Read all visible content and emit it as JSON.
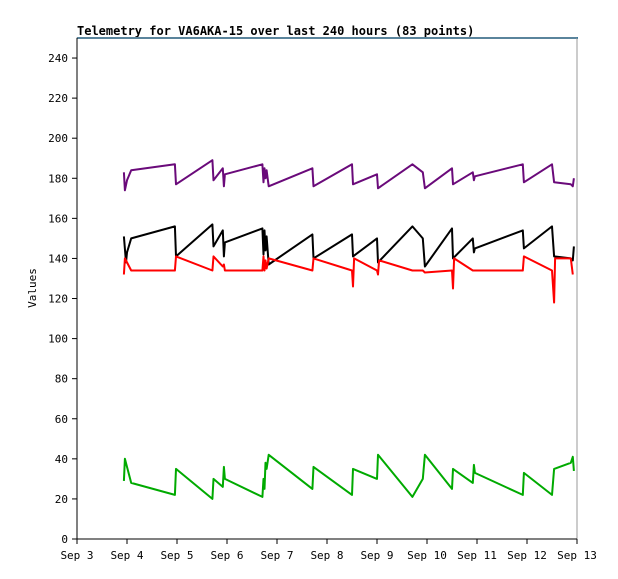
{
  "chart_data": {
    "type": "line",
    "title": "Telemetry for VA6AKA-15 over last 240 hours (83 points)",
    "xlabel": "",
    "ylabel": "Values",
    "xlim": [
      0,
      240
    ],
    "ylim": [
      0,
      250
    ],
    "x_ticks": [
      {
        "x": 0,
        "label": "Sep 3"
      },
      {
        "x": 24,
        "label": "Sep 4"
      },
      {
        "x": 48,
        "label": "Sep 5"
      },
      {
        "x": 72,
        "label": "Sep 6"
      },
      {
        "x": 96,
        "label": "Sep 7"
      },
      {
        "x": 120,
        "label": "Sep 8"
      },
      {
        "x": 144,
        "label": "Sep 9"
      },
      {
        "x": 168,
        "label": "Sep 10"
      },
      {
        "x": 192,
        "label": "Sep 11"
      },
      {
        "x": 216,
        "label": "Sep 12"
      },
      {
        "x": 240,
        "label": "Sep 13"
      }
    ],
    "y_ticks": [
      0,
      20,
      40,
      60,
      80,
      100,
      120,
      140,
      160,
      180,
      200,
      220,
      240
    ],
    "grid": false,
    "legend": "none",
    "series": [
      {
        "color": "#6a0a7a",
        "points": [
          [
            22.5,
            183
          ],
          [
            23,
            174
          ],
          [
            24,
            179
          ],
          [
            26,
            184
          ],
          [
            47,
            187
          ],
          [
            47.5,
            177
          ],
          [
            65,
            189
          ],
          [
            65.5,
            179
          ],
          [
            70,
            185
          ],
          [
            70.5,
            176
          ],
          [
            71,
            182
          ],
          [
            89,
            187
          ],
          [
            89.5,
            178
          ],
          [
            90,
            185
          ],
          [
            90.5,
            180
          ],
          [
            91,
            184
          ],
          [
            92,
            176
          ],
          [
            113,
            185
          ],
          [
            113.5,
            176
          ],
          [
            132,
            187
          ],
          [
            132.5,
            177
          ],
          [
            144,
            182
          ],
          [
            144.5,
            175
          ],
          [
            161,
            187
          ],
          [
            166,
            183
          ],
          [
            167,
            175
          ],
          [
            180,
            185
          ],
          [
            180.5,
            177
          ],
          [
            190,
            183
          ],
          [
            190.5,
            179
          ],
          [
            191,
            181
          ],
          [
            214,
            187
          ],
          [
            214.5,
            178
          ],
          [
            228,
            187
          ],
          [
            229,
            178
          ],
          [
            237,
            177
          ],
          [
            238,
            176
          ],
          [
            238.5,
            180
          ]
        ]
      },
      {
        "color": "#000000",
        "points": [
          [
            22.5,
            151
          ],
          [
            23.5,
            138
          ],
          [
            24,
            143
          ],
          [
            26,
            150
          ],
          [
            47,
            156
          ],
          [
            47.5,
            141
          ],
          [
            65,
            157
          ],
          [
            65.5,
            146
          ],
          [
            70,
            154
          ],
          [
            70.5,
            141
          ],
          [
            71,
            148
          ],
          [
            89,
            155
          ],
          [
            89.5,
            142
          ],
          [
            90,
            154
          ],
          [
            90.5,
            144
          ],
          [
            91,
            151
          ],
          [
            92,
            137
          ],
          [
            113,
            152
          ],
          [
            113.5,
            140
          ],
          [
            132,
            152
          ],
          [
            132.5,
            141
          ],
          [
            144,
            150
          ],
          [
            144.5,
            138
          ],
          [
            161,
            156
          ],
          [
            166,
            150
          ],
          [
            167,
            136
          ],
          [
            180,
            155
          ],
          [
            180.5,
            140
          ],
          [
            190,
            150
          ],
          [
            190.5,
            143
          ],
          [
            191,
            145
          ],
          [
            214,
            154
          ],
          [
            214.5,
            145
          ],
          [
            228,
            156
          ],
          [
            229,
            141
          ],
          [
            237,
            140
          ],
          [
            238,
            139
          ],
          [
            238.5,
            146
          ]
        ]
      },
      {
        "color": "#ff0000",
        "points": [
          [
            22.5,
            132
          ],
          [
            23,
            140
          ],
          [
            24,
            138
          ],
          [
            26,
            134
          ],
          [
            47,
            134
          ],
          [
            47.5,
            141
          ],
          [
            65,
            134
          ],
          [
            65.5,
            141
          ],
          [
            70,
            136
          ],
          [
            70.5,
            137
          ],
          [
            71,
            134
          ],
          [
            89,
            134
          ],
          [
            89.5,
            141
          ],
          [
            90,
            134
          ],
          [
            90.5,
            139
          ],
          [
            91,
            135
          ],
          [
            92,
            140
          ],
          [
            113,
            134
          ],
          [
            113.5,
            140
          ],
          [
            132,
            134
          ],
          [
            132.5,
            126
          ],
          [
            133,
            140
          ],
          [
            144,
            134
          ],
          [
            144.5,
            132
          ],
          [
            145,
            139
          ],
          [
            161,
            134
          ],
          [
            166,
            134
          ],
          [
            167,
            133
          ],
          [
            180,
            134
          ],
          [
            180.5,
            125
          ],
          [
            181,
            140
          ],
          [
            190,
            134
          ],
          [
            191,
            134
          ],
          [
            214,
            134
          ],
          [
            214.5,
            141
          ],
          [
            228,
            134
          ],
          [
            229,
            118
          ],
          [
            229.5,
            140
          ],
          [
            237,
            140
          ],
          [
            238,
            132
          ]
        ]
      },
      {
        "color": "#00aa00",
        "points": [
          [
            22.5,
            29
          ],
          [
            23,
            40
          ],
          [
            24,
            36
          ],
          [
            26,
            28
          ],
          [
            47,
            22
          ],
          [
            47.5,
            35
          ],
          [
            65,
            20
          ],
          [
            65.5,
            30
          ],
          [
            70,
            26
          ],
          [
            70.5,
            36
          ],
          [
            71,
            30
          ],
          [
            89,
            21
          ],
          [
            89.5,
            30
          ],
          [
            90,
            25
          ],
          [
            90.5,
            38
          ],
          [
            91,
            35
          ],
          [
            92,
            42
          ],
          [
            113,
            25
          ],
          [
            113.5,
            36
          ],
          [
            132,
            22
          ],
          [
            132.5,
            35
          ],
          [
            144,
            30
          ],
          [
            144.5,
            42
          ],
          [
            161,
            21
          ],
          [
            166,
            30
          ],
          [
            167,
            42
          ],
          [
            180,
            25
          ],
          [
            180.5,
            35
          ],
          [
            190,
            28
          ],
          [
            190.5,
            37
          ],
          [
            191,
            33
          ],
          [
            214,
            22
          ],
          [
            214.5,
            33
          ],
          [
            228,
            22
          ],
          [
            229,
            35
          ],
          [
            237,
            38
          ],
          [
            238,
            41
          ],
          [
            238.5,
            34
          ]
        ]
      }
    ]
  }
}
